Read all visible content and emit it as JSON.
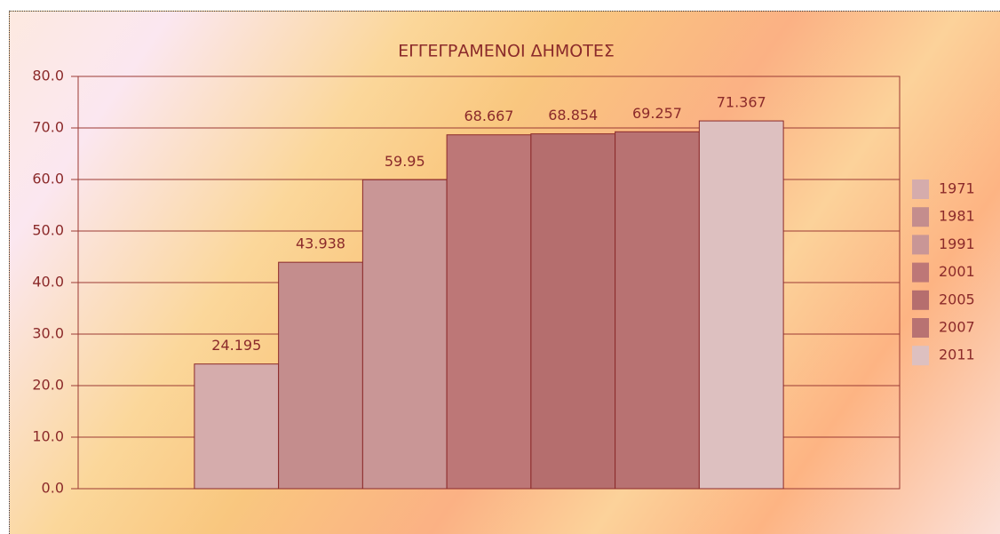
{
  "chart_data": {
    "type": "bar",
    "title": "ΕΓΓΕΓΡΑΜΕΝΟΙ ΔΗΜΟΤΕΣ",
    "series": [
      {
        "name": "1971",
        "color": "#d5acac",
        "values": [
          24.195
        ]
      },
      {
        "name": "1981",
        "color": "#c48d8d",
        "values": [
          43.938
        ]
      },
      {
        "name": "1991",
        "color": "#c99696",
        "values": [
          59.95
        ]
      },
      {
        "name": "2001",
        "color": "#bd7777",
        "values": [
          68.667
        ]
      },
      {
        "name": "2005",
        "color": "#b56e6e",
        "values": [
          68.854
        ]
      },
      {
        "name": "2007",
        "color": "#b87272",
        "values": [
          69.257
        ]
      },
      {
        "name": "2011",
        "color": "#ddc0c0",
        "values": [
          71.367
        ]
      }
    ],
    "ylim": [
      0,
      80
    ],
    "yticks": [
      {
        "value": 0,
        "label": "0.0"
      },
      {
        "value": 10,
        "label": "10.0"
      },
      {
        "value": 20,
        "label": "20.0"
      },
      {
        "value": 30,
        "label": "30.0"
      },
      {
        "value": 40,
        "label": "40.0"
      },
      {
        "value": 50,
        "label": "50.0"
      },
      {
        "value": 60,
        "label": "60.0"
      },
      {
        "value": 70,
        "label": "70.0"
      },
      {
        "value": 80,
        "label": "80.0"
      }
    ],
    "grid": true,
    "legend": "right"
  }
}
